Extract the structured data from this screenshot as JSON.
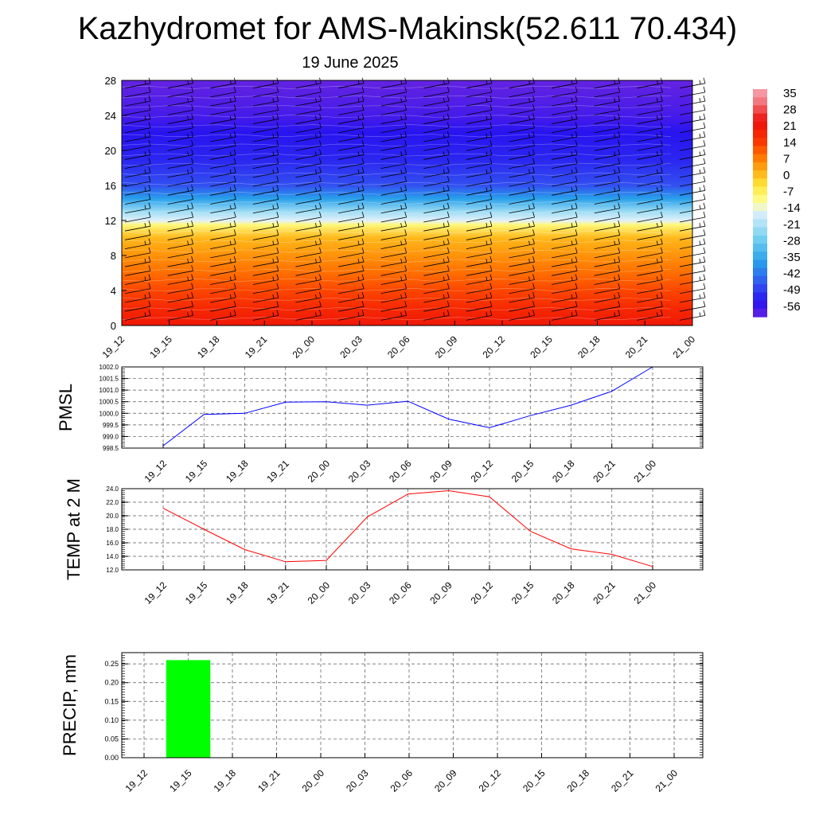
{
  "header": {
    "title": "Kazhydromet for AMS-Makinsk(52.611 70.434)",
    "subtitle": "19 June 2025"
  },
  "colorbar": {
    "labels": [
      "35",
      "28",
      "21",
      "14",
      "7",
      "0",
      "-7",
      "-14",
      "-21",
      "-28",
      "-35",
      "-42",
      "-49",
      "-56"
    ]
  },
  "chart_data": [
    {
      "type": "heatmap",
      "title": "",
      "xlabel": "",
      "ylabel": "",
      "x": [
        "19_12",
        "19_15",
        "19_18",
        "19_21",
        "20_00",
        "20_03",
        "20_06",
        "20_09",
        "20_12",
        "20_15",
        "20_18",
        "20_21",
        "21_00"
      ],
      "yticks": [
        0,
        4,
        8,
        12,
        16,
        20,
        24,
        28
      ],
      "ylim": [
        0,
        28
      ],
      "value_profile": [
        {
          "level": 0,
          "temperature": 22
        },
        {
          "level": 2,
          "temperature": 18
        },
        {
          "level": 4,
          "temperature": 14
        },
        {
          "level": 6,
          "temperature": 10
        },
        {
          "level": 8,
          "temperature": 6
        },
        {
          "level": 10,
          "temperature": 2
        },
        {
          "level": 11.5,
          "temperature": -8
        },
        {
          "level": 12,
          "temperature": -14
        },
        {
          "level": 13,
          "temperature": -21
        },
        {
          "level": 14.5,
          "temperature": -35
        },
        {
          "level": 16,
          "temperature": -45
        },
        {
          "level": 19,
          "temperature": -50
        },
        {
          "level": 22,
          "temperature": -52
        },
        {
          "level": 24,
          "temperature": -55
        },
        {
          "level": 28,
          "temperature": -58
        }
      ],
      "overlay": "wind barbs"
    },
    {
      "type": "line",
      "ylabel": "PMSL",
      "x": [
        "19_12",
        "19_15",
        "19_18",
        "19_21",
        "20_00",
        "20_03",
        "20_06",
        "20_09",
        "20_12",
        "20_15",
        "20_18",
        "20_21",
        "21_00"
      ],
      "yticks": [
        "998.5",
        "999.0",
        "999.5",
        "1000.0",
        "1000.5",
        "1001.0",
        "1001.5",
        "1002.0"
      ],
      "ylim": [
        998.5,
        1002.0
      ],
      "series": [
        {
          "values": [
            998.6,
            999.95,
            1000.0,
            1000.48,
            1000.5,
            1000.35,
            1000.52,
            999.75,
            999.38,
            999.9,
            1000.35,
            1000.95,
            1002.0
          ],
          "color": "#0000ff"
        }
      ],
      "grid": true
    },
    {
      "type": "line",
      "ylabel": "TEMP at 2 M",
      "x": [
        "19_12",
        "19_15",
        "19_18",
        "19_21",
        "20_00",
        "20_03",
        "20_06",
        "20_09",
        "20_12",
        "20_15",
        "20_18",
        "20_21",
        "21_00"
      ],
      "yticks": [
        "12.0",
        "14.0",
        "16.0",
        "18.0",
        "20.0",
        "22.0",
        "24.0"
      ],
      "ylim": [
        12.0,
        24.0
      ],
      "series": [
        {
          "values": [
            21.1,
            18.0,
            15.0,
            13.2,
            13.4,
            19.8,
            23.2,
            23.7,
            22.8,
            17.7,
            15.1,
            14.3,
            12.5
          ],
          "color": "#ff0000"
        }
      ],
      "grid": true
    },
    {
      "type": "bar",
      "ylabel": "PRECIP, mm",
      "categories": [
        "19_12",
        "19_15",
        "19_18",
        "19_21",
        "20_00",
        "20_03",
        "20_06",
        "20_09",
        "20_12",
        "20_15",
        "20_18",
        "20_21",
        "21_00"
      ],
      "values": [
        0,
        0.26,
        0,
        0,
        0,
        0,
        0,
        0,
        0,
        0,
        0,
        0,
        0
      ],
      "yticks": [
        "0.00",
        "0.05",
        "0.10",
        "0.15",
        "0.20",
        "0.25"
      ],
      "ylim": [
        0,
        0.28
      ],
      "color": "#00ff00",
      "grid": true
    }
  ]
}
